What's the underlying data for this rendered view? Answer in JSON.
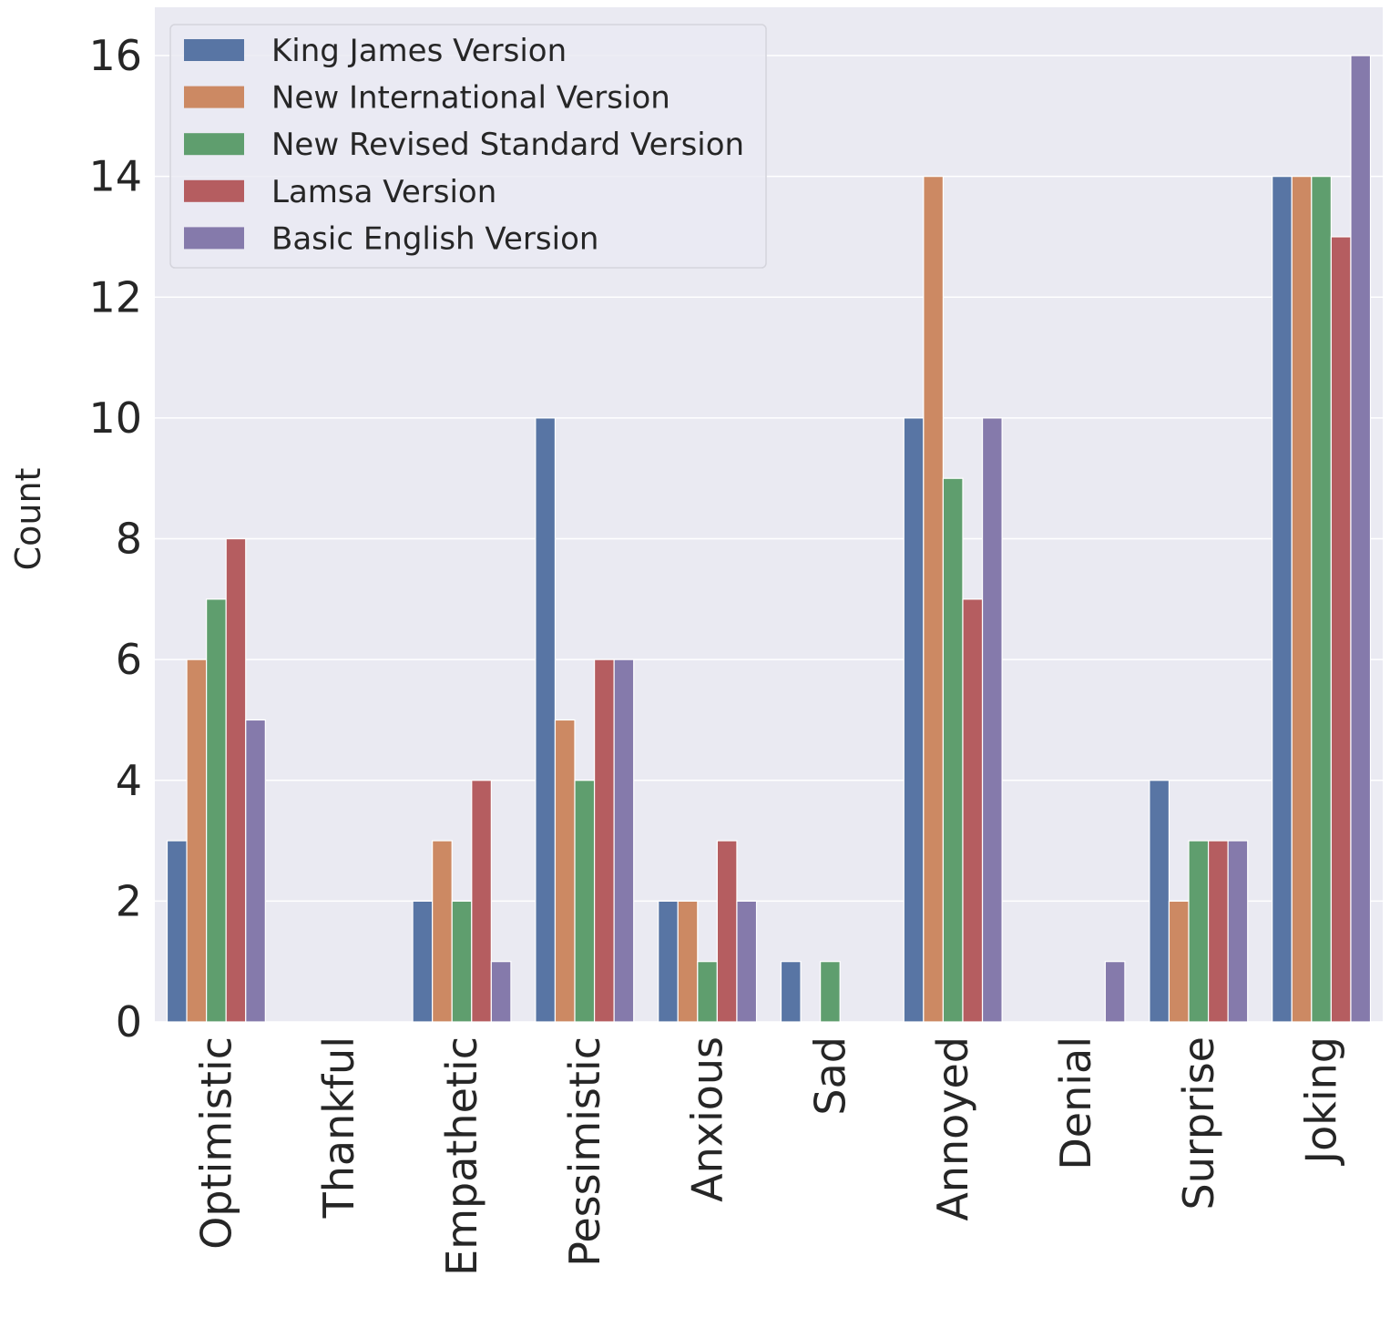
{
  "chart_data": {
    "type": "bar",
    "title": "",
    "xlabel": "",
    "ylabel": "Count",
    "ylim": [
      0,
      16.8
    ],
    "yticks": [
      0,
      2,
      4,
      6,
      8,
      10,
      12,
      14,
      16
    ],
    "grid": true,
    "legend_position": "top-left",
    "categories": [
      "Optimistic",
      "Thankful",
      "Empathetic",
      "Pessimistic",
      "Anxious",
      "Sad",
      "Annoyed",
      "Denial",
      "Surprise",
      "Joking"
    ],
    "series": [
      {
        "name": "King James Version",
        "color": "#5875a4",
        "values": [
          3,
          0,
          2,
          10,
          2,
          1,
          10,
          0,
          4,
          14
        ]
      },
      {
        "name": "New International Version",
        "color": "#cc8963",
        "values": [
          6,
          0,
          3,
          5,
          2,
          0,
          14,
          0,
          2,
          14
        ]
      },
      {
        "name": "New Revised Standard Version",
        "color": "#5f9e6e",
        "values": [
          7,
          0,
          2,
          4,
          1,
          1,
          9,
          0,
          3,
          14
        ]
      },
      {
        "name": "Lamsa Version",
        "color": "#b55d60",
        "values": [
          8,
          0,
          4,
          6,
          3,
          0,
          7,
          0,
          3,
          13
        ]
      },
      {
        "name": "Basic English Version",
        "color": "#857aab",
        "values": [
          5,
          0,
          1,
          6,
          2,
          0,
          10,
          1,
          3,
          16
        ]
      }
    ]
  },
  "style": {
    "plot_background": "#eaeaf2",
    "grid_color": "#ffffff",
    "text_color": "#262626"
  }
}
